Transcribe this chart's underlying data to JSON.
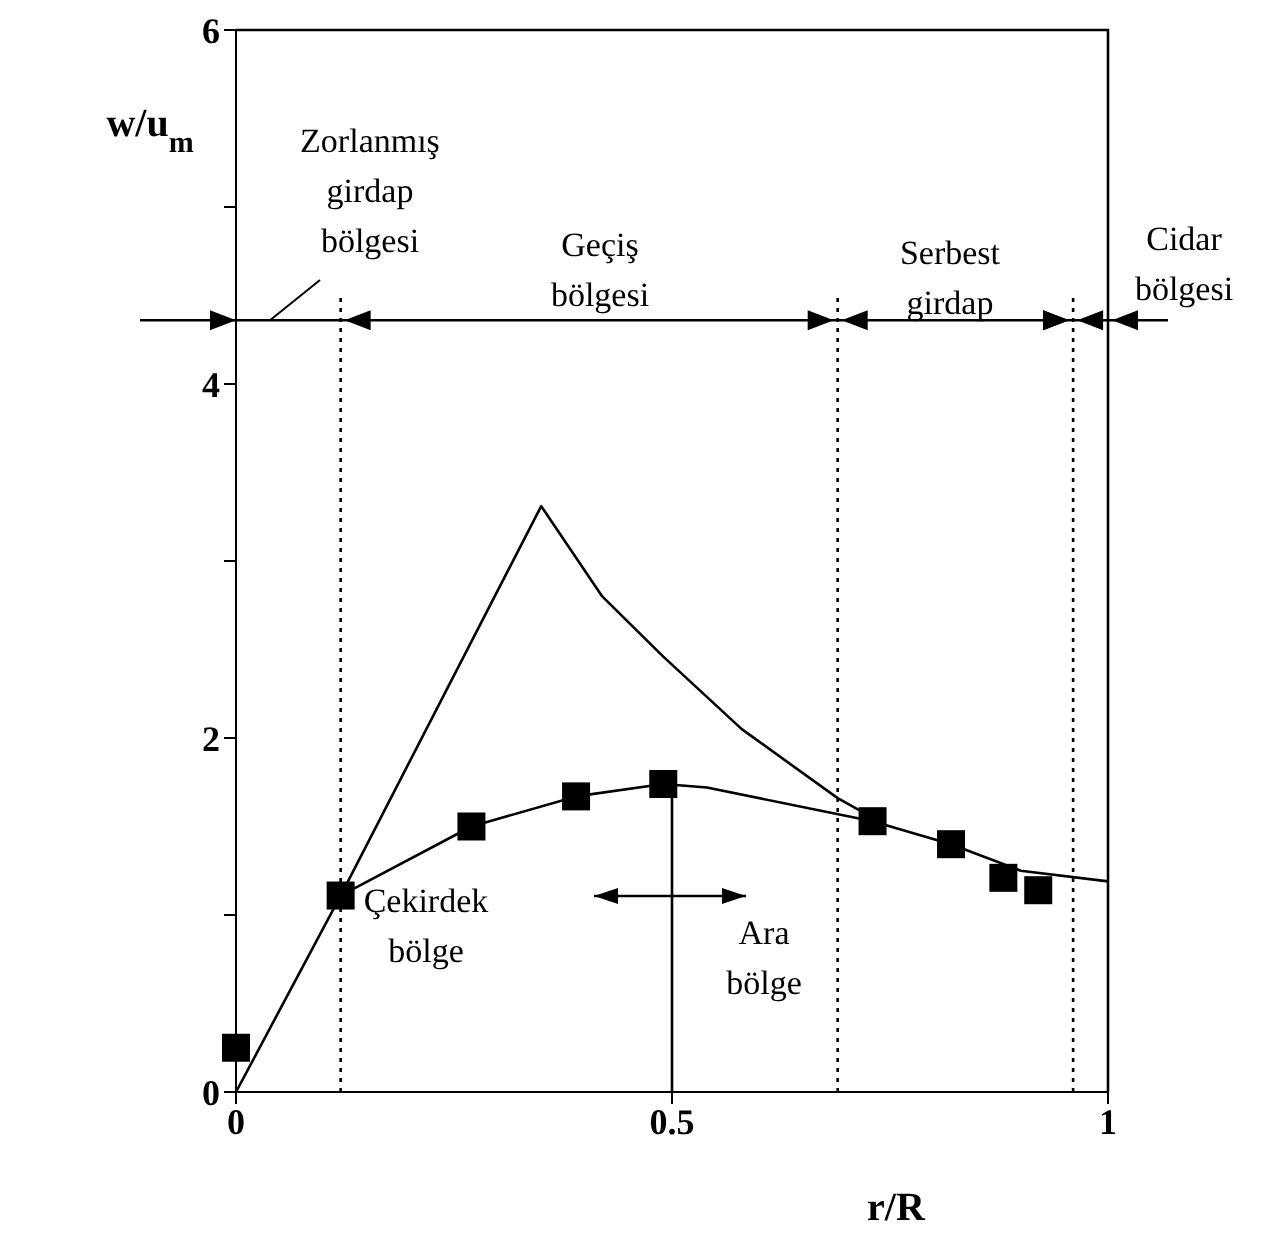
{
  "chart_data": {
    "type": "line",
    "xlabel": "r/R",
    "ylabel": "w/u$_{m}$",
    "xlim": [
      0,
      1
    ],
    "ylim": [
      0,
      6
    ],
    "xticks": [
      0,
      0.5,
      1
    ],
    "yticks": [
      0,
      {
        "value": 1,
        "label": null
      },
      2,
      {
        "value": 3,
        "label": null
      },
      4,
      {
        "value": 5,
        "label": null
      },
      6
    ],
    "series": [
      {
        "type": "line",
        "color": "#000000",
        "marker": "none",
        "x": [
          0,
          0.12,
          0.35,
          0.42,
          0.49,
          0.58,
          0.69,
          0.73
        ],
        "values": [
          0,
          1.11,
          3.31,
          2.8,
          2.46,
          2.05,
          1.66,
          1.55
        ]
      },
      {
        "type": "line",
        "color": "#000000",
        "marker": "none",
        "x": [
          0.12,
          0.27,
          0.39,
          0.49,
          0.54,
          0.73,
          0.82,
          0.9,
          1
        ],
        "values": [
          1.11,
          1.5,
          1.67,
          1.74,
          1.72,
          1.53,
          1.4,
          1.25,
          1.19
        ]
      },
      {
        "type": "line",
        "color": "#000000",
        "marker": "none",
        "x": [
          0.5,
          0.5
        ],
        "values": [
          0,
          1.74
        ]
      },
      {
        "type": "scatter",
        "color": "#000000",
        "marker": "square",
        "x": [
          0,
          0.12,
          0.27,
          0.39,
          0.49,
          0.73,
          0.82,
          0.88,
          0.92
        ],
        "values": [
          0.25,
          1.11,
          1.5,
          1.67,
          1.74,
          1.53,
          1.4,
          1.21,
          1.14
        ]
      }
    ],
    "ref_lines": [
      {
        "axis": "x",
        "value": 0.12,
        "line_style": "dotted",
        "color": "#000000"
      },
      {
        "axis": "x",
        "value": 0.69,
        "line_style": "dotted",
        "color": "#000000"
      },
      {
        "axis": "x",
        "value": 0.96,
        "line_style": "dotted",
        "color": "#000000"
      },
      {
        "axis": "y",
        "value": 4.36,
        "line_style": "solid",
        "color": "#000000"
      }
    ],
    "annotations": [
      "Zorlanmış girdap bölgesi",
      "Geçiş bölgesi",
      "Serbest girdap",
      "Cidar bölgesi",
      "Çekirdek bölge",
      "Ara bölge"
    ]
  }
}
